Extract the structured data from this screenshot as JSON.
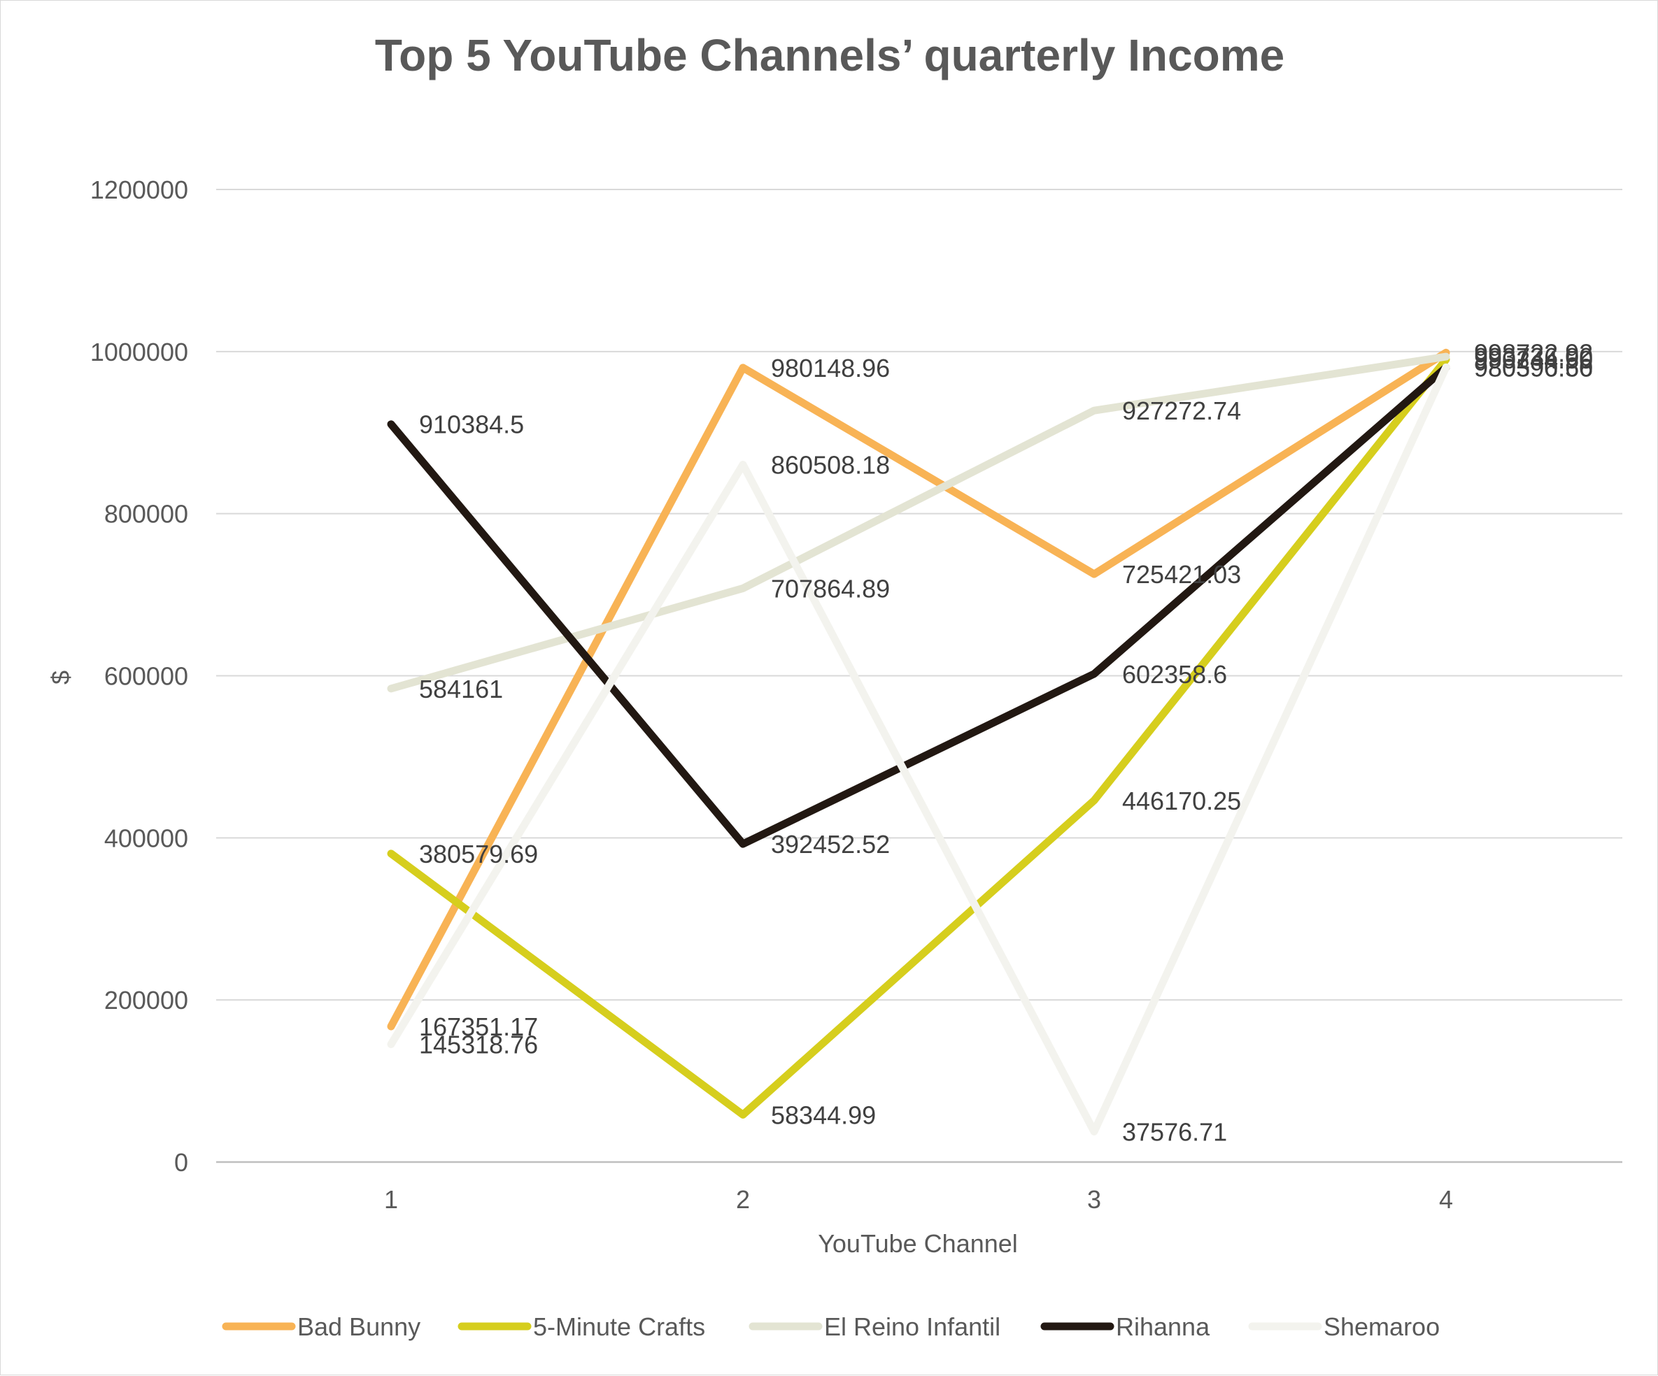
{
  "chart_data": {
    "type": "line",
    "title": "Top 5 YouTube Channels’ quarterly Income",
    "xlabel": "YouTube Channel",
    "ylabel": "$",
    "x": [
      1,
      2,
      3,
      4
    ],
    "ylim": [
      0,
      1200000
    ],
    "yticks": [
      0,
      200000,
      400000,
      600000,
      800000,
      1000000,
      1200000
    ],
    "grid": true,
    "legend_position": "bottom",
    "series": [
      {
        "name": "Bad Bunny",
        "color": "#F8B355",
        "values": [
          167351.17,
          980148.96,
          725421.03,
          998722.92
        ],
        "labels": [
          "167351.17",
          "980148.96",
          "725421.03",
          "998722.92"
        ]
      },
      {
        "name": "5-Minute Crafts",
        "color": "#D6CE1D",
        "values": [
          380579.69,
          58344.99,
          446170.25,
          990244.5
        ],
        "labels": [
          "380579.69",
          "58344.99",
          "446170.25",
          "990244.50"
        ]
      },
      {
        "name": "El Reino Infantil",
        "color": "#E3E4D3",
        "values": [
          584161,
          707864.89,
          927272.74,
          993736.0
        ],
        "labels": [
          "584161",
          "707864.89",
          "927272.74",
          "993736.00"
        ]
      },
      {
        "name": "Rihanna",
        "color": "#221812",
        "values": [
          910384.5,
          392452.52,
          602358.6,
          980396.56
        ],
        "labels": [
          "910384.5",
          "392452.52",
          "602358.6",
          "980396.56"
        ]
      },
      {
        "name": "Shemaroo",
        "color": "#F3F3EE",
        "values": [
          145318.76,
          860508.18,
          37576.71,
          980590.6
        ],
        "labels": [
          "145318.76",
          "860508.18",
          "37576.71",
          "980590.60"
        ]
      }
    ]
  }
}
